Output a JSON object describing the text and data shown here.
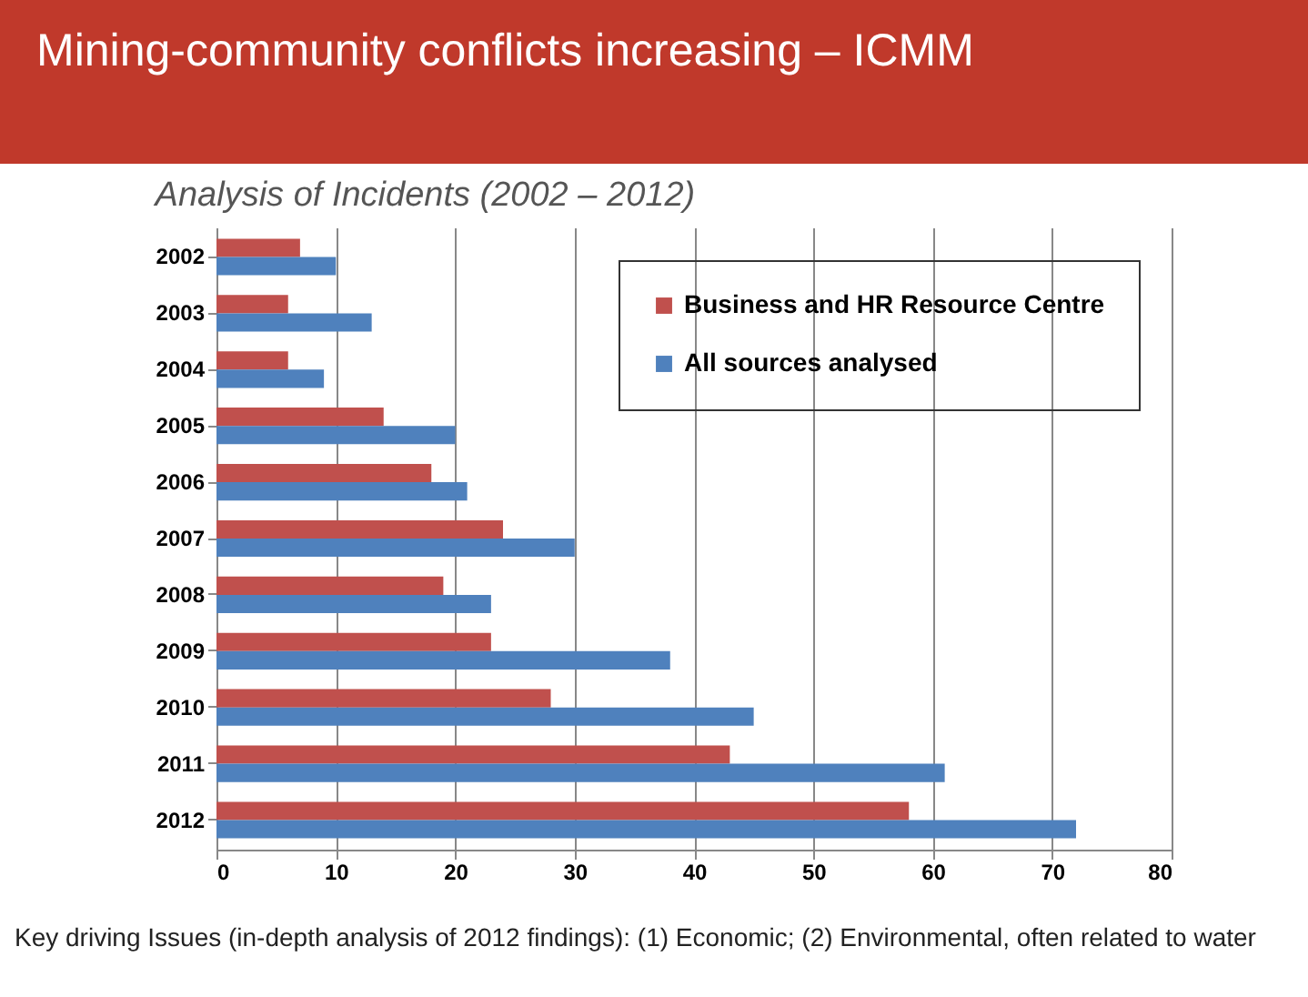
{
  "chart_data": {
    "type": "bar",
    "orientation": "horizontal",
    "title": "Mining-community conflicts increasing – ICMM",
    "subtitle": "Analysis of Incidents (2002 – 2012)",
    "categories": [
      "2002",
      "2003",
      "2004",
      "2005",
      "2006",
      "2007",
      "2008",
      "2009",
      "2010",
      "2011",
      "2012"
    ],
    "series": [
      {
        "name": "Business and HR Resource Centre",
        "color": "#c0504d",
        "values": [
          7,
          6,
          6,
          14,
          18,
          24,
          19,
          23,
          28,
          43,
          58
        ]
      },
      {
        "name": "All sources analysed",
        "color": "#4f81bd",
        "values": [
          10,
          13,
          9,
          20,
          21,
          30,
          23,
          38,
          45,
          61,
          72
        ]
      }
    ],
    "xlim": [
      0,
      80
    ],
    "xticks": [
      0,
      10,
      20,
      30,
      40,
      50,
      60,
      70,
      80
    ],
    "grid": "x",
    "legend": "top right",
    "annotations": [
      "Key driving Issues (in-depth analysis of 2012 findings): (1) Economic; (2) Environmental, often related to water"
    ]
  }
}
